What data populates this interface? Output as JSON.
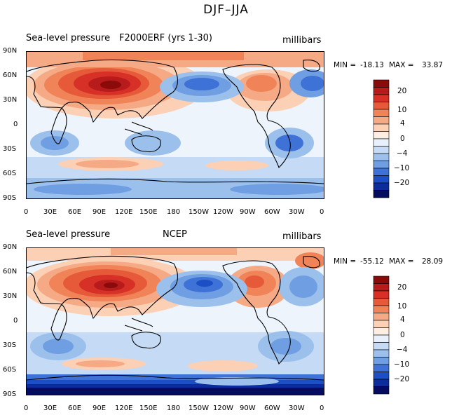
{
  "figure_title": "DJF–JJA",
  "colorbar_levels": [
    "20",
    "10",
    "4",
    "0",
    "−4",
    "−10",
    "−20"
  ],
  "colorbar_colors": [
    "#8b0a0a",
    "#b81b1b",
    "#d73027",
    "#e65a3a",
    "#f08358",
    "#f6a985",
    "#fbd0b5",
    "#fdeee3",
    "#e7f0fb",
    "#c5daf4",
    "#9cc0ec",
    "#6f9ee2",
    "#3e72d6",
    "#1d4fc4",
    "#0c2b9c",
    "#050b5e"
  ],
  "lat_labels": [
    "90N",
    "60N",
    "30N",
    "0",
    "30S",
    "60S",
    "90S"
  ],
  "lon_labels": [
    "0",
    "30E",
    "60E",
    "90E",
    "120E",
    "150E",
    "180",
    "150W",
    "120W",
    "90W",
    "60W",
    "30W",
    "0"
  ],
  "panels": [
    {
      "left_title": "Sea-level pressure",
      "center_title": "F2000ERF (yrs 1-30)",
      "units": "millibars",
      "min_label": "MIN =",
      "min_value": "-18.13",
      "max_label": "MAX =",
      "max_value": "33.87"
    },
    {
      "left_title": "Sea-level pressure",
      "center_title": "NCEP",
      "units": "millibars",
      "min_label": "MIN =",
      "min_value": "-55.12",
      "max_label": "MAX =",
      "max_value": "28.09"
    }
  ]
}
